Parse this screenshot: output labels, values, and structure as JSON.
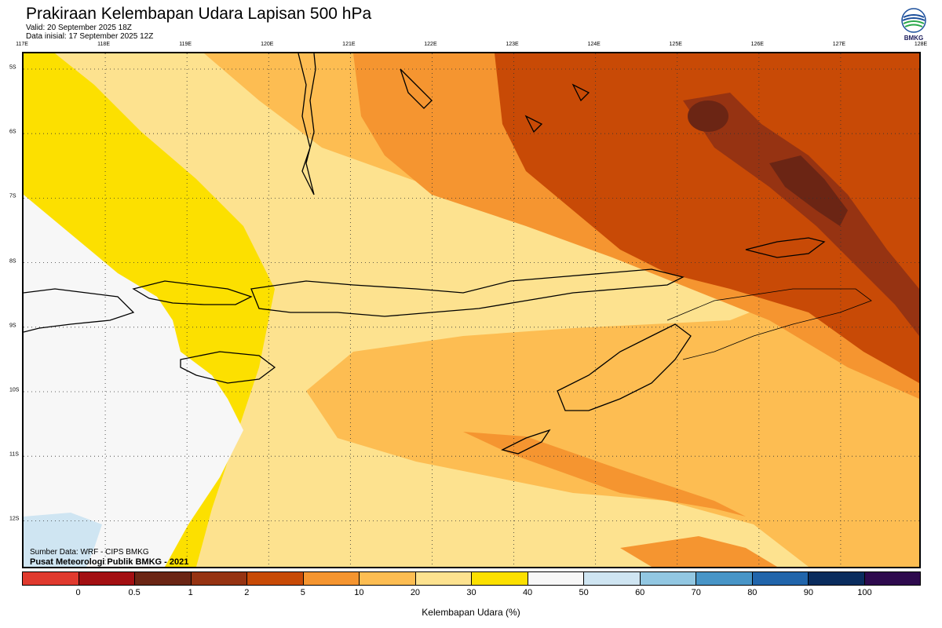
{
  "header": {
    "title": "Prakiraan Kelembapan Udara Lapisan 500 hPa",
    "valid": "Valid: 20 September 2025 18Z",
    "initial": "Data inisial: 17 September 2025 12Z"
  },
  "logo": {
    "text": "BMKG"
  },
  "map": {
    "lon_labels": [
      "117E",
      "118E",
      "119E",
      "120E",
      "121E",
      "122E",
      "123E",
      "124E",
      "125E",
      "126E",
      "127E",
      "128E"
    ],
    "lat_labels": [
      "5S",
      "6S",
      "7S",
      "8S",
      "9S",
      "10S",
      "11S",
      "12S"
    ]
  },
  "source": {
    "line1": "Sumber Data: WRF - CIPS BMKG",
    "line2": "Pusat Meteorologi Publik BMKG - 2021"
  },
  "colorbar": {
    "colors": [
      "#e03a2e",
      "#a30f12",
      "#6b2514",
      "#963312",
      "#c84a06",
      "#f59530",
      "#fdbd52",
      "#fde28f",
      "#fce000",
      "#f7f7f7",
      "#cfe5f2",
      "#92c7e2",
      "#4895c7",
      "#2165ab",
      "#0a2c5e",
      "#2e0a4e"
    ],
    "ticks": [
      "0",
      "0.5",
      "1",
      "2",
      "5",
      "10",
      "20",
      "30",
      "40",
      "50",
      "60",
      "70",
      "80",
      "90",
      "100"
    ],
    "label": "Kelembapan Udara (%)"
  },
  "legend_palette": {
    "very_dry": "#6b2514",
    "dry": "#c84a06",
    "moderate": "#f59530",
    "light": "#fdbd52",
    "pale": "#fde28f",
    "yellow": "#fce000",
    "white": "#f7f7f7",
    "lightblue": "#cfe5f2"
  }
}
